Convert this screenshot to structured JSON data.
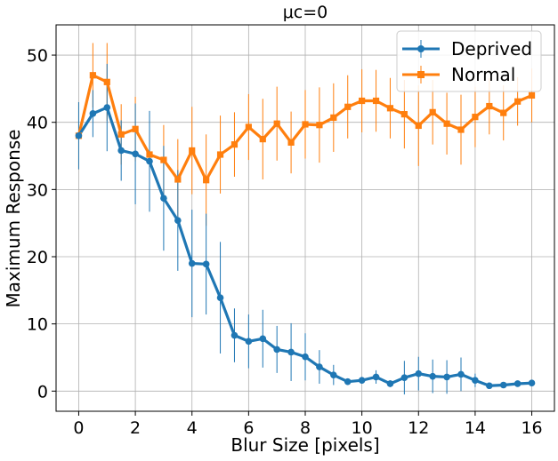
{
  "chart_data": {
    "type": "line",
    "title": "μc=0",
    "xlabel": "Blur Size [pixels]",
    "ylabel": "Maximum Response",
    "xlim": [
      -0.8,
      16.8
    ],
    "ylim": [
      -3,
      54.5
    ],
    "xticks": [
      0,
      2,
      4,
      6,
      8,
      10,
      12,
      14,
      16
    ],
    "yticks": [
      0,
      10,
      20,
      30,
      40,
      50
    ],
    "grid": true,
    "legend_position": "top-right",
    "x": [
      0,
      0.5,
      1,
      1.5,
      2,
      2.5,
      3,
      3.5,
      4,
      4.5,
      5,
      5.5,
      6,
      6.5,
      7,
      7.5,
      8,
      8.5,
      9,
      9.5,
      10,
      10.5,
      11,
      11.5,
      12,
      12.5,
      13,
      13.5,
      14,
      14.5,
      15,
      15.5,
      16
    ],
    "series": [
      {
        "name": "Deprived",
        "color": "#1f77b4",
        "marker": "circle",
        "values": [
          38,
          41.3,
          42.2,
          35.8,
          35.3,
          34.2,
          28.7,
          25.4,
          19,
          18.9,
          13.9,
          8.3,
          7.4,
          7.8,
          6.2,
          5.8,
          5.1,
          3.6,
          2.4,
          1.4,
          1.6,
          2.1,
          1.1,
          2.0,
          2.6,
          2.2,
          2.1,
          2.5,
          1.6,
          0.8,
          0.9,
          1.1,
          1.2
        ],
        "errors": [
          5,
          3.5,
          6.5,
          4.5,
          7.5,
          7.5,
          7.8,
          7.5,
          8,
          7.5,
          8.3,
          4,
          4,
          4.3,
          3.5,
          4.3,
          3.5,
          2.5,
          1.5,
          0.5,
          0.5,
          1,
          0.5,
          2.5,
          2.5,
          2.5,
          2.5,
          2.5,
          1,
          0.3,
          0.3,
          0.3,
          0.3
        ]
      },
      {
        "name": "Normal",
        "color": "#ff7f0e",
        "marker": "square",
        "values": [
          38,
          47,
          46,
          38.2,
          39,
          35.2,
          34.4,
          31.5,
          35.8,
          31.4,
          35.2,
          36.7,
          39.3,
          37.5,
          39.8,
          37,
          39.7,
          39.6,
          40.7,
          42.3,
          43.2,
          43.2,
          42.1,
          41.2,
          39.5,
          41.5,
          39.8,
          38.9,
          40.8,
          42.4,
          41.4,
          43.1,
          44
        ]
      }
    ],
    "normal_errors": [
      5,
      4.8,
      5.8,
      4.5,
      4.8,
      5,
      5.2,
      6,
      6.5,
      6.8,
      5.8,
      4.8,
      4.9,
      6,
      5.5,
      4.6,
      5.1,
      5.6,
      5.1,
      4.7,
      4.7,
      4.6,
      4.5,
      5.1,
      6,
      4.8,
      4.6,
      5.2,
      4.5,
      4.2,
      4.1,
      3.6,
      4
    ]
  }
}
